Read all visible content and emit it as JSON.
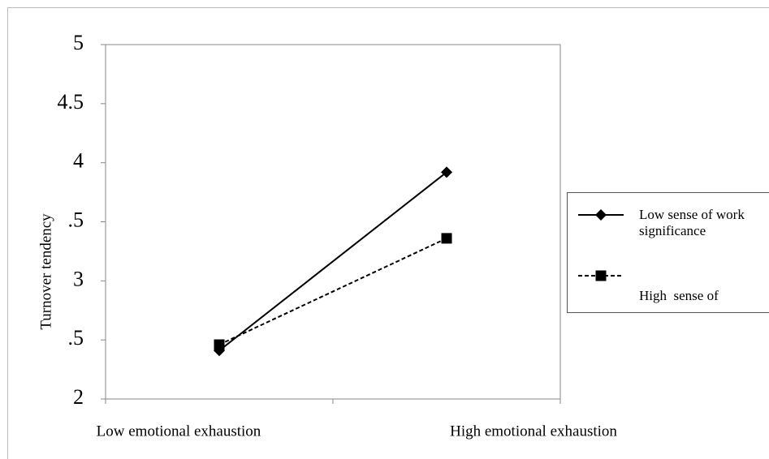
{
  "chart_data": {
    "type": "line",
    "categories": [
      "Low emotional exhaustion",
      "High emotional exhaustion"
    ],
    "y_label": "Turnover tendency",
    "series": [
      {
        "name": "Low sense of work significance",
        "color": "#000000",
        "dash": "solid",
        "marker": "diamond",
        "values": [
          2.41,
          3.92
        ]
      },
      {
        "name": "High  sense of",
        "color": "#000000",
        "dash": "dashed",
        "marker": "square",
        "values": [
          2.46,
          3.36
        ]
      }
    ],
    "ylim": [
      2,
      5
    ],
    "yticks": [
      2,
      {
        "value": 2.5,
        "label": ".5"
      },
      3,
      {
        "value": 3.5,
        "label": ".5"
      },
      4,
      4.5,
      5
    ],
    "legend": "right"
  }
}
